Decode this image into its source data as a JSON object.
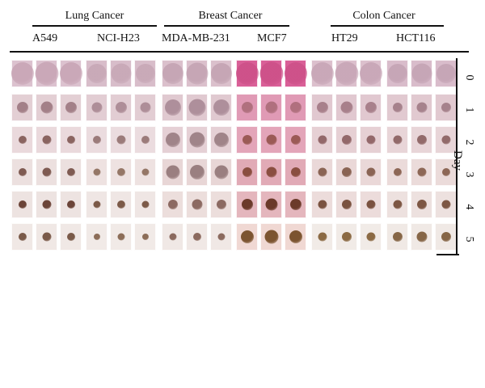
{
  "groups": [
    {
      "name": "Lung Cancer",
      "lines": [
        "A549",
        "NCI-H23"
      ]
    },
    {
      "name": "Breast Cancer",
      "lines": [
        "MDA-MB-231",
        "MCF7"
      ]
    },
    {
      "name": "Colon Cancer",
      "lines": [
        "HT29",
        "HCT116"
      ]
    }
  ],
  "day_axis": {
    "title": "Day",
    "ticks": [
      "0",
      "1",
      "2",
      "3",
      "4",
      "5"
    ]
  },
  "colors": {
    "well_background_default": "#e6d4d8",
    "well_background_mcf7": "#e2a5b8",
    "day0_tint": "#d7b4c4",
    "spheroid_late": "#6b4438"
  }
}
